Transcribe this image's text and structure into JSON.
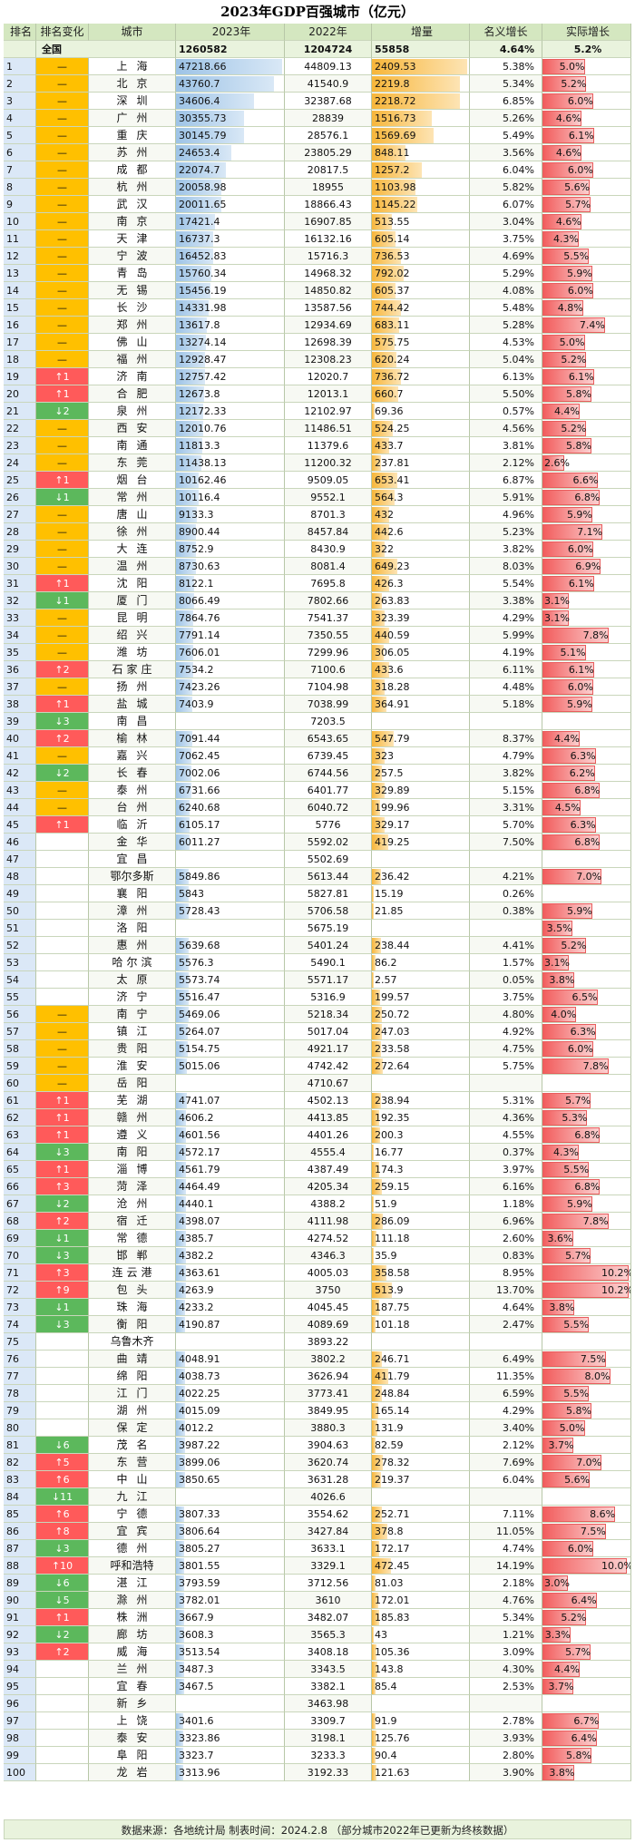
{
  "title": "2023年GDP百强城市（亿元）",
  "headers": {
    "rank": "排名",
    "change": "排名变化",
    "city": "城市",
    "y2023": "2023年",
    "y2022": "2022年",
    "increase": "增量",
    "nominal": "名义增长",
    "real": "实际增长"
  },
  "total": {
    "label": "全国",
    "y2023": "1260582",
    "y2022": "1204724",
    "increase": "55858",
    "nominal": "4.64%",
    "real": "5.2%"
  },
  "rows": [
    [
      "1",
      "—",
      "上海",
      "47218.66",
      "44809.13",
      "2409.53",
      "5.38%",
      "5.0%"
    ],
    [
      "2",
      "—",
      "北京",
      "43760.7",
      "41540.9",
      "2219.8",
      "5.34%",
      "5.2%"
    ],
    [
      "3",
      "—",
      "深圳",
      "34606.4",
      "32387.68",
      "2218.72",
      "6.85%",
      "6.0%"
    ],
    [
      "4",
      "—",
      "广州",
      "30355.73",
      "28839",
      "1516.73",
      "5.26%",
      "4.6%"
    ],
    [
      "5",
      "—",
      "重庆",
      "30145.79",
      "28576.1",
      "1569.69",
      "5.49%",
      "6.1%"
    ],
    [
      "6",
      "—",
      "苏州",
      "24653.4",
      "23805.29",
      "848.11",
      "3.56%",
      "4.6%"
    ],
    [
      "7",
      "—",
      "成都",
      "22074.7",
      "20817.5",
      "1257.2",
      "6.04%",
      "6.0%"
    ],
    [
      "8",
      "—",
      "杭州",
      "20058.98",
      "18955",
      "1103.98",
      "5.82%",
      "5.6%"
    ],
    [
      "9",
      "—",
      "武汉",
      "20011.65",
      "18866.43",
      "1145.22",
      "6.07%",
      "5.7%"
    ],
    [
      "10",
      "—",
      "南京",
      "17421.4",
      "16907.85",
      "513.55",
      "3.04%",
      "4.6%"
    ],
    [
      "11",
      "—",
      "天津",
      "16737.3",
      "16132.16",
      "605.14",
      "3.75%",
      "4.3%"
    ],
    [
      "12",
      "—",
      "宁波",
      "16452.83",
      "15716.3",
      "736.53",
      "4.69%",
      "5.5%"
    ],
    [
      "13",
      "—",
      "青岛",
      "15760.34",
      "14968.32",
      "792.02",
      "5.29%",
      "5.9%"
    ],
    [
      "14",
      "—",
      "无锡",
      "15456.19",
      "14850.82",
      "605.37",
      "4.08%",
      "6.0%"
    ],
    [
      "15",
      "—",
      "长沙",
      "14331.98",
      "13587.56",
      "744.42",
      "5.48%",
      "4.8%"
    ],
    [
      "16",
      "—",
      "郑州",
      "13617.8",
      "12934.69",
      "683.11",
      "5.28%",
      "7.4%"
    ],
    [
      "17",
      "—",
      "佛山",
      "13274.14",
      "12698.39",
      "575.75",
      "4.53%",
      "5.0%"
    ],
    [
      "18",
      "—",
      "福州",
      "12928.47",
      "12308.23",
      "620.24",
      "5.04%",
      "5.2%"
    ],
    [
      "19",
      "↑1",
      "济南",
      "12757.42",
      "12020.7",
      "736.72",
      "6.13%",
      "6.1%"
    ],
    [
      "20",
      "↑1",
      "合肥",
      "12673.8",
      "12013.1",
      "660.7",
      "5.50%",
      "5.8%"
    ],
    [
      "21",
      "↓2",
      "泉州",
      "12172.33",
      "12102.97",
      "69.36",
      "0.57%",
      "4.4%"
    ],
    [
      "22",
      "—",
      "西安",
      "12010.76",
      "11486.51",
      "524.25",
      "4.56%",
      "5.2%"
    ],
    [
      "23",
      "—",
      "南通",
      "11813.3",
      "11379.6",
      "433.7",
      "3.81%",
      "5.8%"
    ],
    [
      "24",
      "—",
      "东莞",
      "11438.13",
      "11200.32",
      "237.81",
      "2.12%",
      "2.6%"
    ],
    [
      "25",
      "↑1",
      "烟台",
      "10162.46",
      "9509.05",
      "653.41",
      "6.87%",
      "6.6%"
    ],
    [
      "26",
      "↓1",
      "常州",
      "10116.4",
      "9552.1",
      "564.3",
      "5.91%",
      "6.8%"
    ],
    [
      "27",
      "—",
      "唐山",
      "9133.3",
      "8701.3",
      "432",
      "4.96%",
      "5.9%"
    ],
    [
      "28",
      "—",
      "徐州",
      "8900.44",
      "8457.84",
      "442.6",
      "5.23%",
      "7.1%"
    ],
    [
      "29",
      "—",
      "大连",
      "8752.9",
      "8430.9",
      "322",
      "3.82%",
      "6.0%"
    ],
    [
      "30",
      "—",
      "温州",
      "8730.63",
      "8081.4",
      "649.23",
      "8.03%",
      "6.9%"
    ],
    [
      "31",
      "↑1",
      "沈阳",
      "8122.1",
      "7695.8",
      "426.3",
      "5.54%",
      "6.1%"
    ],
    [
      "32",
      "↓1",
      "厦门",
      "8066.49",
      "7802.66",
      "263.83",
      "3.38%",
      "3.1%"
    ],
    [
      "33",
      "—",
      "昆明",
      "7864.76",
      "7541.37",
      "323.39",
      "4.29%",
      "3.1%"
    ],
    [
      "34",
      "—",
      "绍兴",
      "7791.14",
      "7350.55",
      "440.59",
      "5.99%",
      "7.8%"
    ],
    [
      "35",
      "—",
      "潍坊",
      "7606.01",
      "7299.96",
      "306.05",
      "4.19%",
      "5.1%"
    ],
    [
      "36",
      "↑2",
      "石家庄",
      "7534.2",
      "7100.6",
      "433.6",
      "6.11%",
      "6.1%"
    ],
    [
      "37",
      "—",
      "扬州",
      "7423.26",
      "7104.98",
      "318.28",
      "4.48%",
      "6.0%"
    ],
    [
      "38",
      "↑1",
      "盐城",
      "7403.9",
      "7038.99",
      "364.91",
      "5.18%",
      "5.9%"
    ],
    [
      "39",
      "↓3",
      "南昌",
      "",
      "7203.5",
      "",
      "",
      ""
    ],
    [
      "40",
      "↑2",
      "榆林",
      "7091.44",
      "6543.65",
      "547.79",
      "8.37%",
      "4.4%"
    ],
    [
      "41",
      "—",
      "嘉兴",
      "7062.45",
      "6739.45",
      "323",
      "4.79%",
      "6.3%"
    ],
    [
      "42",
      "↓2",
      "长春",
      "7002.06",
      "6744.56",
      "257.5",
      "3.82%",
      "6.2%"
    ],
    [
      "43",
      "—",
      "泰州",
      "6731.66",
      "6401.77",
      "329.89",
      "5.15%",
      "6.8%"
    ],
    [
      "44",
      "—",
      "台州",
      "6240.68",
      "6040.72",
      "199.96",
      "3.31%",
      "4.5%"
    ],
    [
      "45",
      "↑1",
      "临沂",
      "6105.17",
      "5776",
      "329.17",
      "5.70%",
      "6.3%"
    ],
    [
      "46",
      "",
      "金华",
      "6011.27",
      "5592.02",
      "419.25",
      "7.50%",
      "6.8%"
    ],
    [
      "47",
      "",
      "宜昌",
      "",
      "5502.69",
      "",
      "",
      ""
    ],
    [
      "48",
      "",
      "鄂尔多斯",
      "5849.86",
      "5613.44",
      "236.42",
      "4.21%",
      "7.0%"
    ],
    [
      "49",
      "",
      "襄阳",
      "5843",
      "5827.81",
      "15.19",
      "0.26%",
      ""
    ],
    [
      "50",
      "",
      "漳州",
      "5728.43",
      "5706.58",
      "21.85",
      "0.38%",
      "5.9%"
    ],
    [
      "51",
      "",
      "洛阳",
      "",
      "5675.19",
      "",
      "",
      "3.5%"
    ],
    [
      "52",
      "",
      "惠州",
      "5639.68",
      "5401.24",
      "238.44",
      "4.41%",
      "5.2%"
    ],
    [
      "53",
      "",
      "哈尔滨",
      "5576.3",
      "5490.1",
      "86.2",
      "1.57%",
      "3.1%"
    ],
    [
      "54",
      "",
      "太原",
      "5573.74",
      "5571.17",
      "2.57",
      "0.05%",
      "3.8%"
    ],
    [
      "55",
      "",
      "济宁",
      "5516.47",
      "5316.9",
      "199.57",
      "3.75%",
      "6.5%"
    ],
    [
      "56",
      "—",
      "南宁",
      "5469.06",
      "5218.34",
      "250.72",
      "4.80%",
      "4.0%"
    ],
    [
      "57",
      "—",
      "镇江",
      "5264.07",
      "5017.04",
      "247.03",
      "4.92%",
      "6.3%"
    ],
    [
      "58",
      "—",
      "贵阳",
      "5154.75",
      "4921.17",
      "233.58",
      "4.75%",
      "6.0%"
    ],
    [
      "59",
      "—",
      "淮安",
      "5015.06",
      "4742.42",
      "272.64",
      "5.75%",
      "7.8%"
    ],
    [
      "60",
      "—",
      "岳阳",
      "",
      "4710.67",
      "",
      "",
      ""
    ],
    [
      "61",
      "↑1",
      "芜湖",
      "4741.07",
      "4502.13",
      "238.94",
      "5.31%",
      "5.7%"
    ],
    [
      "62",
      "↑1",
      "赣州",
      "4606.2",
      "4413.85",
      "192.35",
      "4.36%",
      "5.3%"
    ],
    [
      "63",
      "↑1",
      "遵义",
      "4601.56",
      "4401.26",
      "200.3",
      "4.55%",
      "6.8%"
    ],
    [
      "64",
      "↓3",
      "南阳",
      "4572.17",
      "4555.4",
      "16.77",
      "0.37%",
      "4.3%"
    ],
    [
      "65",
      "↑1",
      "淄博",
      "4561.79",
      "4387.49",
      "174.3",
      "3.97%",
      "5.5%"
    ],
    [
      "66",
      "↑3",
      "菏泽",
      "4464.49",
      "4205.34",
      "259.15",
      "6.16%",
      "6.8%"
    ],
    [
      "67",
      "↓2",
      "沧州",
      "4440.1",
      "4388.2",
      "51.9",
      "1.18%",
      "5.9%"
    ],
    [
      "68",
      "↑2",
      "宿迁",
      "4398.07",
      "4111.98",
      "286.09",
      "6.96%",
      "7.8%"
    ],
    [
      "69",
      "↓1",
      "常德",
      "4385.7",
      "4274.52",
      "111.18",
      "2.60%",
      "3.6%"
    ],
    [
      "70",
      "↓3",
      "邯郸",
      "4382.2",
      "4346.3",
      "35.9",
      "0.83%",
      "5.7%"
    ],
    [
      "71",
      "↑3",
      "连云港",
      "4363.61",
      "4005.03",
      "358.58",
      "8.95%",
      "10.2%"
    ],
    [
      "72",
      "↑9",
      "包头",
      "4263.9",
      "3750",
      "513.9",
      "13.70%",
      "10.2%"
    ],
    [
      "73",
      "↓1",
      "珠海",
      "4233.2",
      "4045.45",
      "187.75",
      "4.64%",
      "3.8%"
    ],
    [
      "74",
      "↓3",
      "衡阳",
      "4190.87",
      "4089.69",
      "101.18",
      "2.47%",
      "5.5%"
    ],
    [
      "75",
      "",
      "乌鲁木齐",
      "",
      "3893.22",
      "",
      "",
      ""
    ],
    [
      "76",
      "",
      "曲靖",
      "4048.91",
      "3802.2",
      "246.71",
      "6.49%",
      "7.5%"
    ],
    [
      "77",
      "",
      "绵阳",
      "4038.73",
      "3626.94",
      "411.79",
      "11.35%",
      "8.0%"
    ],
    [
      "78",
      "",
      "江门",
      "4022.25",
      "3773.41",
      "248.84",
      "6.59%",
      "5.5%"
    ],
    [
      "79",
      "",
      "湖州",
      "4015.09",
      "3849.95",
      "165.14",
      "4.29%",
      "5.8%"
    ],
    [
      "80",
      "",
      "保定",
      "4012.2",
      "3880.3",
      "131.9",
      "3.40%",
      "5.0%"
    ],
    [
      "81",
      "↓6",
      "茂名",
      "3987.22",
      "3904.63",
      "82.59",
      "2.12%",
      "3.7%"
    ],
    [
      "82",
      "↑5",
      "东营",
      "3899.06",
      "3620.74",
      "278.32",
      "7.69%",
      "7.0%"
    ],
    [
      "83",
      "↑6",
      "中山",
      "3850.65",
      "3631.28",
      "219.37",
      "6.04%",
      "5.6%"
    ],
    [
      "84",
      "↓11",
      "九江",
      "",
      "4026.6",
      "",
      "",
      ""
    ],
    [
      "85",
      "↑6",
      "宁德",
      "3807.33",
      "3554.62",
      "252.71",
      "7.11%",
      "8.6%"
    ],
    [
      "86",
      "↑8",
      "宜宾",
      "3806.64",
      "3427.84",
      "378.8",
      "11.05%",
      "7.5%"
    ],
    [
      "87",
      "↓3",
      "德州",
      "3805.27",
      "3633.1",
      "172.17",
      "4.74%",
      "6.0%"
    ],
    [
      "88",
      "↑10",
      "呼和浩特",
      "3801.55",
      "3329.1",
      "472.45",
      "14.19%",
      "10.0%"
    ],
    [
      "89",
      "↓6",
      "湛江",
      "3793.59",
      "3712.56",
      "81.03",
      "2.18%",
      "3.0%"
    ],
    [
      "90",
      "↓5",
      "滁州",
      "3782.01",
      "3610",
      "172.01",
      "4.76%",
      "6.4%"
    ],
    [
      "91",
      "↑1",
      "株洲",
      "3667.9",
      "3482.07",
      "185.83",
      "5.34%",
      "5.2%"
    ],
    [
      "92",
      "↓2",
      "廊坊",
      "3608.3",
      "3565.3",
      "43",
      "1.21%",
      "3.3%"
    ],
    [
      "93",
      "↑2",
      "威海",
      "3513.54",
      "3408.18",
      "105.36",
      "3.09%",
      "5.7%"
    ],
    [
      "94",
      "",
      "兰州",
      "3487.3",
      "3343.5",
      "143.8",
      "4.30%",
      "4.4%"
    ],
    [
      "95",
      "",
      "宜春",
      "3467.5",
      "3382.1",
      "85.4",
      "2.53%",
      "3.7%"
    ],
    [
      "96",
      "",
      "新乡",
      "",
      "3463.98",
      "",
      "",
      ""
    ],
    [
      "97",
      "",
      "上饶",
      "3401.6",
      "3309.7",
      "91.9",
      "2.78%",
      "6.7%"
    ],
    [
      "98",
      "",
      "泰安",
      "3323.86",
      "3198.1",
      "125.76",
      "3.93%",
      "6.4%"
    ],
    [
      "99",
      "",
      "阜阳",
      "3323.7",
      "3233.3",
      "90.4",
      "2.80%",
      "5.8%"
    ],
    [
      "100",
      "",
      "龙岩",
      "3313.96",
      "3192.33",
      "121.63",
      "3.90%",
      "3.8%"
    ]
  ],
  "footer": "数据来源：各地统计局    制表时间：2024.2.8 （部分城市2022年已更新为终核数据）",
  "colors": {
    "flat": "#ffc000",
    "up": "#ff5a5a",
    "down": "#5cb85c",
    "bar2023": "#9dc3e6",
    "barIncrease": "#f7b63a",
    "barReal": "#f25d5d",
    "header": "#d4e7c0"
  }
}
